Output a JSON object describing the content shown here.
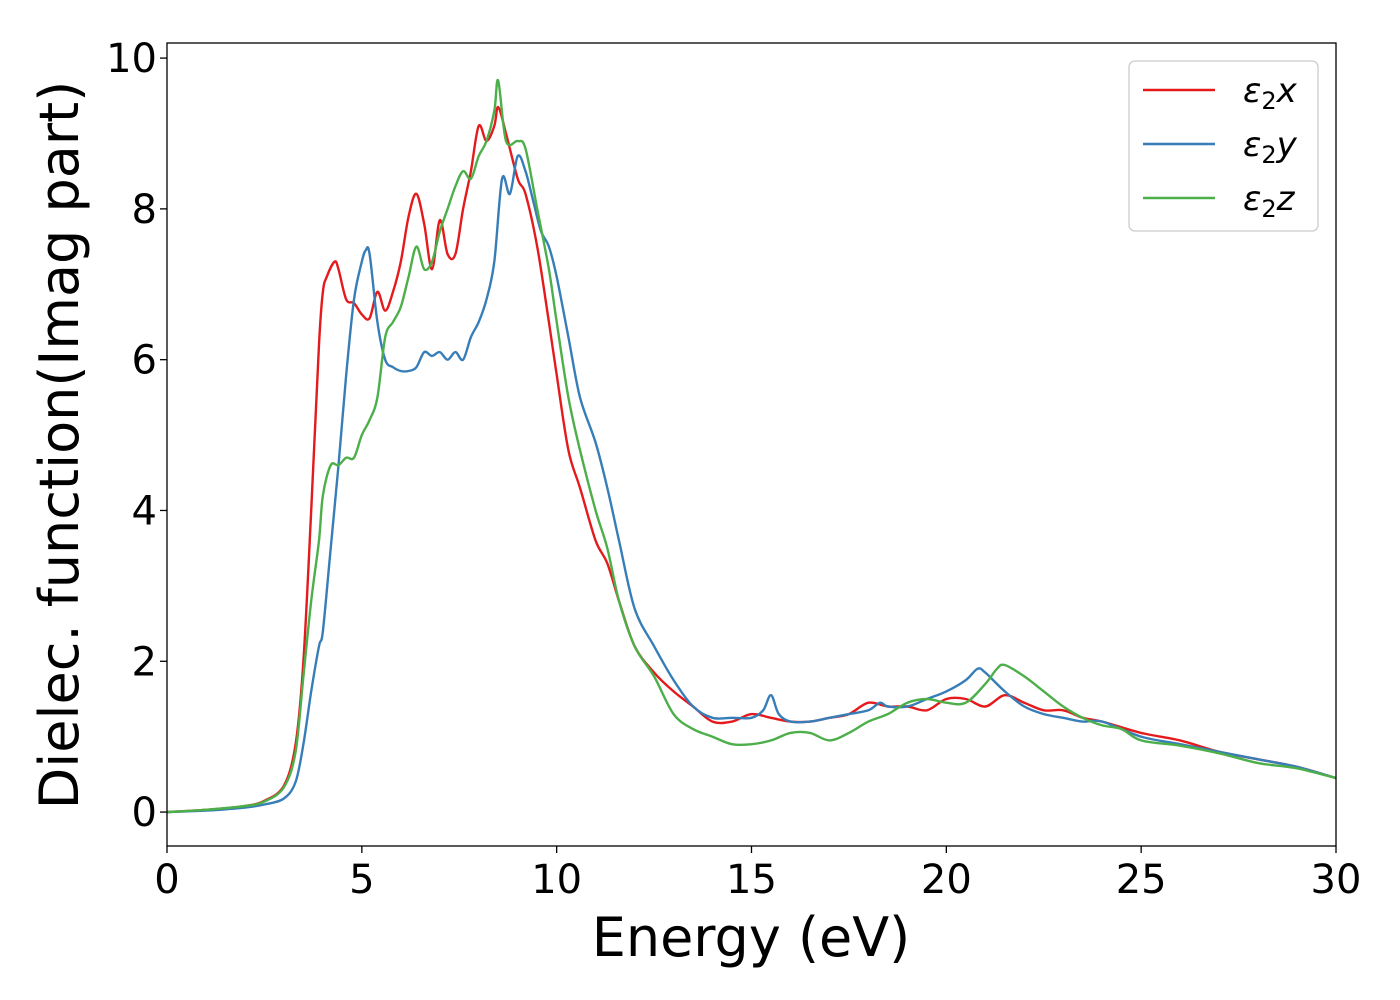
{
  "chart_data": {
    "type": "line",
    "title": "",
    "xlabel": "Energy (eV)",
    "ylabel": "Dielec. function(Imag part)",
    "xlim": [
      0,
      30
    ],
    "ylim": [
      -0.45,
      10.2
    ],
    "xticks": [
      0,
      5,
      10,
      15,
      20,
      25,
      30
    ],
    "yticks": [
      0,
      2,
      4,
      6,
      8,
      10
    ],
    "grid": false,
    "legend_position": "top-right",
    "series": [
      {
        "name": "ε₂x",
        "legend_base": "ε",
        "legend_sub": "2",
        "legend_suffix": "x",
        "color": "#e41a1c",
        "x": [
          0,
          1,
          2,
          2.5,
          3,
          3.3,
          3.5,
          3.7,
          3.9,
          4.0,
          4.1,
          4.3,
          4.4,
          4.6,
          4.8,
          5.0,
          5.2,
          5.4,
          5.6,
          5.8,
          6.0,
          6.2,
          6.4,
          6.6,
          6.8,
          7.0,
          7.2,
          7.4,
          7.6,
          7.8,
          8.0,
          8.2,
          8.4,
          8.5,
          8.7,
          9.0,
          9.2,
          9.5,
          9.8,
          10.0,
          10.3,
          10.6,
          11.0,
          11.3,
          11.6,
          12.0,
          12.5,
          13.0,
          13.5,
          14.0,
          14.5,
          15.0,
          15.5,
          16.0,
          16.5,
          17.0,
          17.5,
          18.0,
          18.5,
          19.0,
          19.5,
          20.0,
          20.5,
          21.0,
          21.5,
          22.0,
          22.5,
          23.0,
          23.5,
          24.0,
          25.0,
          26.0,
          27.0,
          28.0,
          29.0,
          30.0
        ],
        "values": [
          0,
          0.03,
          0.08,
          0.15,
          0.35,
          0.9,
          2.0,
          4.0,
          6.2,
          6.9,
          7.1,
          7.3,
          7.2,
          6.8,
          6.75,
          6.6,
          6.55,
          6.9,
          6.65,
          6.9,
          7.3,
          7.9,
          8.2,
          7.8,
          7.2,
          7.85,
          7.4,
          7.4,
          8.0,
          8.5,
          9.1,
          8.9,
          9.1,
          9.35,
          9.0,
          8.4,
          8.2,
          7.5,
          6.5,
          5.8,
          4.8,
          4.3,
          3.6,
          3.3,
          2.8,
          2.2,
          1.85,
          1.6,
          1.4,
          1.2,
          1.2,
          1.3,
          1.25,
          1.2,
          1.2,
          1.25,
          1.3,
          1.45,
          1.4,
          1.4,
          1.35,
          1.5,
          1.5,
          1.4,
          1.55,
          1.45,
          1.35,
          1.35,
          1.25,
          1.2,
          1.05,
          0.95,
          0.8,
          0.7,
          0.6,
          0.45
        ]
      },
      {
        "name": "ε₂y",
        "legend_base": "ε",
        "legend_sub": "2",
        "legend_suffix": "y",
        "color": "#377eb8",
        "x": [
          0,
          1,
          2,
          2.5,
          3,
          3.3,
          3.5,
          3.7,
          3.9,
          4.0,
          4.2,
          4.4,
          4.6,
          4.8,
          5.0,
          5.1,
          5.2,
          5.4,
          5.6,
          5.8,
          6.0,
          6.2,
          6.4,
          6.6,
          6.8,
          7.0,
          7.2,
          7.4,
          7.6,
          7.8,
          8.0,
          8.2,
          8.4,
          8.6,
          8.8,
          9.0,
          9.2,
          9.4,
          9.6,
          9.8,
          10.0,
          10.3,
          10.6,
          11.0,
          11.3,
          11.6,
          12.0,
          12.5,
          13.0,
          13.5,
          14.0,
          14.5,
          15.0,
          15.3,
          15.5,
          15.7,
          16.0,
          16.5,
          17.0,
          17.5,
          18.0,
          18.3,
          18.5,
          19.0,
          19.5,
          20.0,
          20.5,
          20.8,
          21.0,
          21.5,
          22.0,
          22.5,
          23.0,
          23.5,
          24.0,
          25.0,
          26.0,
          27.0,
          28.0,
          29.0,
          30.0
        ],
        "values": [
          0,
          0.02,
          0.06,
          0.1,
          0.18,
          0.4,
          0.9,
          1.6,
          2.2,
          2.4,
          3.5,
          4.6,
          5.8,
          6.8,
          7.3,
          7.45,
          7.4,
          6.5,
          6.0,
          5.9,
          5.85,
          5.85,
          5.9,
          6.1,
          6.05,
          6.1,
          6.0,
          6.1,
          6.0,
          6.3,
          6.5,
          6.8,
          7.3,
          8.4,
          8.2,
          8.7,
          8.5,
          8.1,
          7.7,
          7.5,
          7.1,
          6.3,
          5.5,
          4.9,
          4.3,
          3.6,
          2.7,
          2.2,
          1.75,
          1.4,
          1.25,
          1.25,
          1.25,
          1.35,
          1.55,
          1.3,
          1.2,
          1.2,
          1.25,
          1.3,
          1.35,
          1.45,
          1.4,
          1.4,
          1.5,
          1.6,
          1.75,
          1.9,
          1.85,
          1.6,
          1.4,
          1.3,
          1.25,
          1.2,
          1.2,
          1.0,
          0.9,
          0.8,
          0.7,
          0.6,
          0.45
        ]
      },
      {
        "name": "ε₂z",
        "legend_base": "ε",
        "legend_sub": "2",
        "legend_suffix": "z",
        "color": "#4daf4a",
        "x": [
          0,
          1,
          2,
          2.5,
          3,
          3.3,
          3.5,
          3.7,
          3.9,
          4.0,
          4.2,
          4.4,
          4.6,
          4.8,
          5.0,
          5.2,
          5.4,
          5.6,
          5.8,
          6.0,
          6.2,
          6.4,
          6.6,
          6.8,
          7.0,
          7.2,
          7.4,
          7.6,
          7.8,
          8.0,
          8.2,
          8.4,
          8.5,
          8.7,
          9.0,
          9.2,
          9.5,
          9.8,
          10.0,
          10.3,
          10.6,
          11.0,
          11.3,
          11.6,
          12.0,
          12.5,
          13.0,
          13.5,
          14.0,
          14.5,
          15.0,
          15.5,
          16.0,
          16.5,
          17.0,
          17.5,
          18.0,
          18.5,
          19.0,
          19.5,
          20.0,
          20.5,
          21.0,
          21.3,
          21.5,
          22.0,
          22.5,
          23.0,
          23.5,
          24.0,
          24.5,
          25.0,
          26.0,
          27.0,
          28.0,
          29.0,
          30.0
        ],
        "values": [
          0,
          0.03,
          0.08,
          0.14,
          0.33,
          0.8,
          1.8,
          2.8,
          3.6,
          4.2,
          4.6,
          4.6,
          4.7,
          4.7,
          5.0,
          5.2,
          5.5,
          6.3,
          6.5,
          6.7,
          7.1,
          7.5,
          7.2,
          7.3,
          7.7,
          8.0,
          8.3,
          8.5,
          8.4,
          8.7,
          8.9,
          9.3,
          9.7,
          8.9,
          8.9,
          8.8,
          8.0,
          7.2,
          6.5,
          5.5,
          4.8,
          4.0,
          3.5,
          2.8,
          2.2,
          1.8,
          1.3,
          1.1,
          1.0,
          0.9,
          0.9,
          0.95,
          1.05,
          1.05,
          0.95,
          1.05,
          1.2,
          1.3,
          1.45,
          1.5,
          1.45,
          1.45,
          1.7,
          1.9,
          1.95,
          1.8,
          1.6,
          1.4,
          1.25,
          1.15,
          1.1,
          0.95,
          0.88,
          0.78,
          0.65,
          0.58,
          0.45
        ]
      }
    ]
  }
}
